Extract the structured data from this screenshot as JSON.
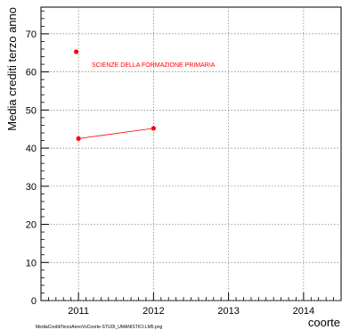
{
  "chart_data": {
    "type": "scatter",
    "title": "",
    "xlabel": "coorte",
    "ylabel": "Media crediti terzo anno",
    "xlim": [
      2010.5,
      2014.5
    ],
    "ylim": [
      0,
      77
    ],
    "x_ticks": [
      "2011",
      "2012",
      "2013",
      "2014"
    ],
    "y_ticks": [
      "0",
      "10",
      "20",
      "30",
      "40",
      "50",
      "60",
      "70"
    ],
    "grid": true,
    "series": [
      {
        "name": "SCIENZE DELLA FORMAZIONE PRIMARIA",
        "color": "#ff0000",
        "line": true,
        "x": [
          2011,
          2012
        ],
        "y": [
          42.5,
          45.2
        ]
      },
      {
        "color": "#ff0000",
        "line": false,
        "x": [
          2010.97
        ],
        "y": [
          65.3
        ]
      }
    ],
    "annotation": {
      "text": "SCIENZE DELLA FORMAZIONE PRIMARIA",
      "color": "#ff0000"
    }
  },
  "footer": {
    "filename": "MediaCreditiTerzoAnnoVsCoorte-STUDI_UMANISTICI-LM5.png"
  }
}
